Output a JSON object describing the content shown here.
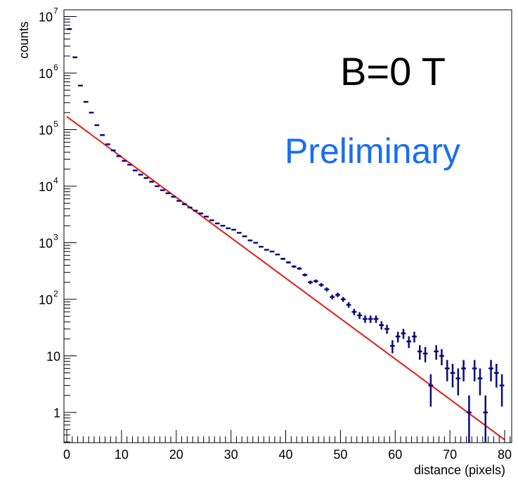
{
  "chart_data": {
    "type": "scatter",
    "xlabel": "distance (pixels)",
    "ylabel": "counts",
    "xlim": [
      0,
      81
    ],
    "ylim": [
      0.3,
      10000000
    ],
    "yscale": "log",
    "x_ticks": [
      {
        "value": 0,
        "label": "0"
      },
      {
        "value": 10,
        "label": "10"
      },
      {
        "value": 20,
        "label": "20"
      },
      {
        "value": 30,
        "label": "30"
      },
      {
        "value": 40,
        "label": "40"
      },
      {
        "value": 50,
        "label": "50"
      },
      {
        "value": 60,
        "label": "60"
      },
      {
        "value": 70,
        "label": "70"
      },
      {
        "value": 80,
        "label": "80"
      }
    ],
    "y_ticks": [
      {
        "value": 1,
        "label": "1"
      },
      {
        "value": 10,
        "label": "10"
      },
      {
        "value": 100,
        "base": "10",
        "exp": "2"
      },
      {
        "value": 1000,
        "base": "10",
        "exp": "3"
      },
      {
        "value": 10000,
        "base": "10",
        "exp": "4"
      },
      {
        "value": 100000,
        "base": "10",
        "exp": "5"
      },
      {
        "value": 1000000,
        "base": "10",
        "exp": "6"
      },
      {
        "value": 10000000,
        "base": "10",
        "exp": "7"
      }
    ],
    "annotations": {
      "field": "B=0 T",
      "status": "Preliminary"
    },
    "colors": {
      "data": "#0a0a78",
      "fit": "#e61919",
      "preliminary": "#1a6ef0",
      "axis": "#000000"
    },
    "series": [
      {
        "kind": "histogram",
        "x": [
          0.5,
          1.5,
          2.5,
          3.5,
          4.5,
          5.5,
          6.5,
          7.5,
          8.5,
          9.5,
          10.5,
          11.5,
          12.5,
          13.5,
          14.5,
          15.5,
          16.5,
          17.5,
          18.5,
          19.5,
          20.5,
          21.5,
          22.5,
          23.5,
          24.5,
          25.5,
          26.5,
          27.5,
          28.5,
          29.5,
          30.5,
          31.5,
          32.5,
          33.5,
          34.5,
          35.5,
          36.5,
          37.5,
          38.5,
          39.5,
          40.5,
          41.5,
          42.5,
          43.5,
          44.5,
          45.5,
          46.5,
          47.5,
          48.5,
          49.5,
          50.5,
          51.5,
          52.5,
          53.5,
          54.5,
          55.5,
          56.5,
          57.5,
          58.5,
          59.5,
          60.5,
          61.5,
          62.5,
          63.5,
          64.5,
          65.5,
          66.5,
          67.5,
          68.5,
          69.5,
          70.5,
          71.5,
          72.5,
          73.5,
          74.5,
          75.5,
          76.5,
          77.5,
          78.5,
          79.5
        ],
        "y": [
          6000000,
          1900000,
          600000,
          310000,
          200000,
          120000,
          80000,
          55000,
          43000,
          34000,
          28000,
          24000,
          19000,
          16000,
          14000,
          12000,
          10000,
          8500,
          7500,
          6500,
          5500,
          4800,
          4200,
          3700,
          3300,
          2900,
          2500,
          2200,
          2000,
          1800,
          1700,
          1500,
          1300,
          1100,
          1000,
          850,
          750,
          700,
          620,
          520,
          450,
          380,
          350,
          270,
          200,
          210,
          180,
          150,
          110,
          120,
          100,
          80,
          60,
          52,
          45,
          45,
          45,
          35,
          30,
          15,
          22,
          25,
          18,
          22,
          12,
          11,
          3,
          12,
          10,
          6,
          5,
          4,
          6,
          1,
          6,
          4,
          1,
          6,
          5,
          3
        ]
      },
      {
        "kind": "fit",
        "x": [
          0,
          80
        ],
        "y": [
          170000,
          0.33
        ]
      }
    ]
  }
}
